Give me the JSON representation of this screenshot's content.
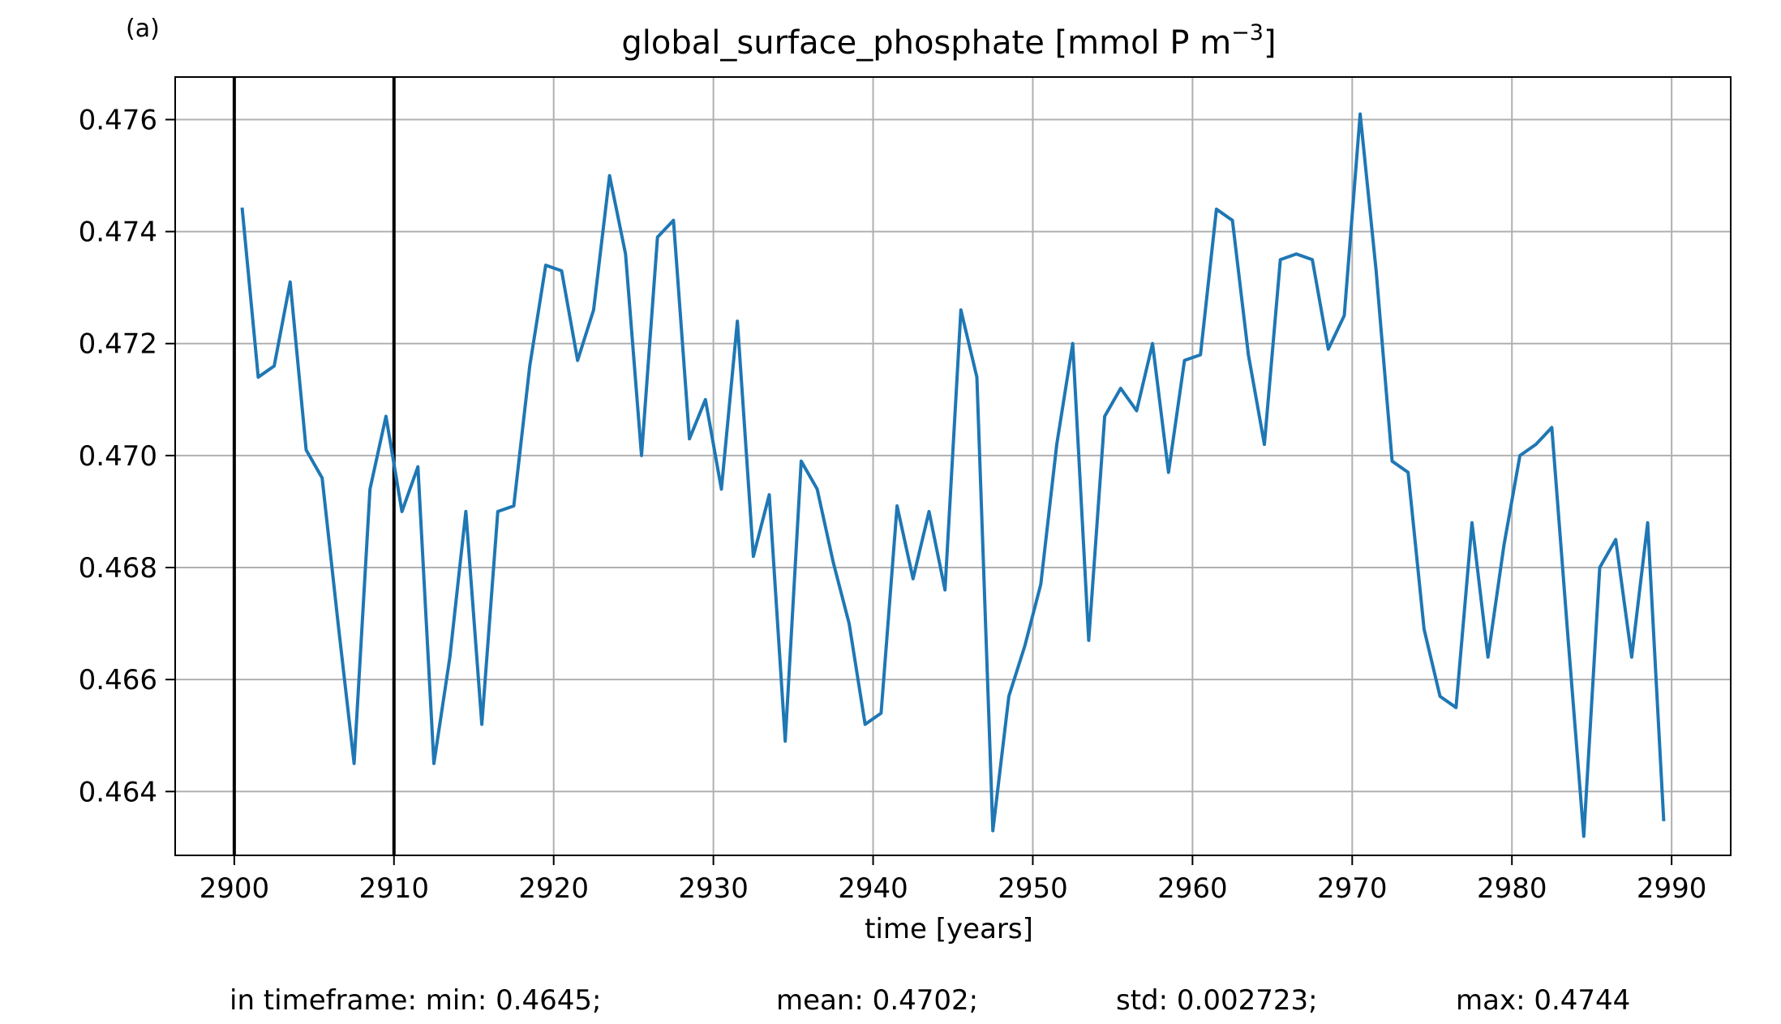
{
  "panel_label": "(a)",
  "title_main": "global_surface_phosphate [mmol P m",
  "title_sup": "−3",
  "title_end": "]",
  "footer": {
    "min": "in timeframe: min: 0.4645;",
    "mean": "mean: 0.4702;",
    "std": "std: 0.002723;",
    "max": "max: 0.4744"
  },
  "colors": {
    "series": "#1f77b4",
    "grid": "#b0b0b0",
    "axes": "#000000",
    "marker_lines": "#000000"
  },
  "chart_data": {
    "type": "line",
    "title": "global_surface_phosphate [mmol P m−3]",
    "xlabel": "time [years]",
    "ylabel": "",
    "xlim": [
      2896.3,
      2993.7
    ],
    "ylim": [
      0.46286,
      0.47676
    ],
    "xticks": [
      2900,
      2910,
      2920,
      2930,
      2940,
      2950,
      2960,
      2970,
      2980,
      2990
    ],
    "yticks": [
      0.464,
      0.466,
      0.468,
      0.47,
      0.472,
      0.474,
      0.476
    ],
    "ytick_labels": [
      "0.464",
      "0.466",
      "0.468",
      "0.470",
      "0.472",
      "0.474",
      "0.476"
    ],
    "grid": true,
    "vlines": [
      2900,
      2910
    ],
    "series": [
      {
        "x": [
          2900.5,
          2901.5,
          2902.5,
          2903.5,
          2904.5,
          2905.5,
          2906.5,
          2907.5,
          2908.5,
          2909.5,
          2910.5,
          2911.5,
          2912.5,
          2913.5,
          2914.5,
          2915.5,
          2916.5,
          2917.5,
          2918.5,
          2919.5,
          2920.5,
          2921.5,
          2922.5,
          2923.5,
          2924.5,
          2925.5,
          2926.5,
          2927.5,
          2928.5,
          2929.5,
          2930.5,
          2931.5,
          2932.5,
          2933.5,
          2934.5,
          2935.5,
          2936.5,
          2937.5,
          2938.5,
          2939.5,
          2940.5,
          2941.5,
          2942.5,
          2943.5,
          2944.5,
          2945.5,
          2946.5,
          2947.5,
          2948.5,
          2949.5,
          2950.5,
          2951.5,
          2952.5,
          2953.5,
          2954.5,
          2955.5,
          2956.5,
          2957.5,
          2958.5,
          2959.5,
          2960.5,
          2961.5,
          2962.5,
          2963.5,
          2964.5,
          2965.5,
          2966.5,
          2967.5,
          2968.5,
          2969.5,
          2970.5,
          2971.5,
          2972.5,
          2973.5,
          2974.5,
          2975.5,
          2976.5,
          2977.5,
          2978.5,
          2979.5,
          2980.5,
          2981.5,
          2982.5,
          2983.5,
          2984.5,
          2985.5,
          2986.5,
          2987.5,
          2988.5,
          2989.5
        ],
        "y": [
          0.4744,
          0.4714,
          0.4716,
          0.4731,
          0.4701,
          0.4696,
          0.467,
          0.4645,
          0.4694,
          0.4707,
          0.469,
          0.4698,
          0.4645,
          0.4664,
          0.469,
          0.4652,
          0.469,
          0.4691,
          0.4716,
          0.4734,
          0.4733,
          0.4717,
          0.4726,
          0.475,
          0.4736,
          0.47,
          0.4739,
          0.4742,
          0.4703,
          0.471,
          0.4694,
          0.4724,
          0.4682,
          0.4693,
          0.4649,
          0.4699,
          0.4694,
          0.4681,
          0.467,
          0.4652,
          0.4654,
          0.4691,
          0.4678,
          0.469,
          0.4676,
          0.4726,
          0.4714,
          0.4633,
          0.4657,
          0.4666,
          0.4677,
          0.4702,
          0.472,
          0.4667,
          0.4707,
          0.4712,
          0.4708,
          0.472,
          0.4697,
          0.4717,
          0.4718,
          0.4744,
          0.4742,
          0.4718,
          0.4702,
          0.4735,
          0.4736,
          0.4735,
          0.4719,
          0.4725,
          0.4761,
          0.4733,
          0.4699,
          0.4697,
          0.4669,
          0.4657,
          0.4655,
          0.4688,
          0.4664,
          0.4684,
          0.47,
          0.4702,
          0.4705,
          0.4668,
          0.4632,
          0.468,
          0.4685,
          0.4664,
          0.4688,
          0.4635
        ]
      }
    ]
  }
}
